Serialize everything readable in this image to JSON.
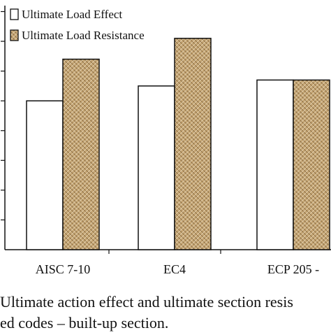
{
  "chart_data": {
    "type": "bar",
    "categories": [
      "AISC 7-10",
      "EC4",
      "ECP 205 -"
    ],
    "series": [
      {
        "name": "Ultimate Load Effect",
        "values": [
          5.0,
          5.5,
          5.7
        ],
        "fill": "#ffffff"
      },
      {
        "name": "Ultimate Load Resistance",
        "values": [
          6.4,
          7.1,
          5.7
        ],
        "fill": "#c7a877"
      }
    ],
    "ylim": [
      0,
      8.2
    ],
    "grid": false,
    "legend": "top-left",
    "colors": {
      "bar_outline": "#111111",
      "hatch_dark": "#8d6e43",
      "hatch_light": "#e5d3b3"
    }
  },
  "caption": {
    "line1": "Ultimate action effect and ultimate section resis",
    "line2": "ed codes – built-up section."
  }
}
